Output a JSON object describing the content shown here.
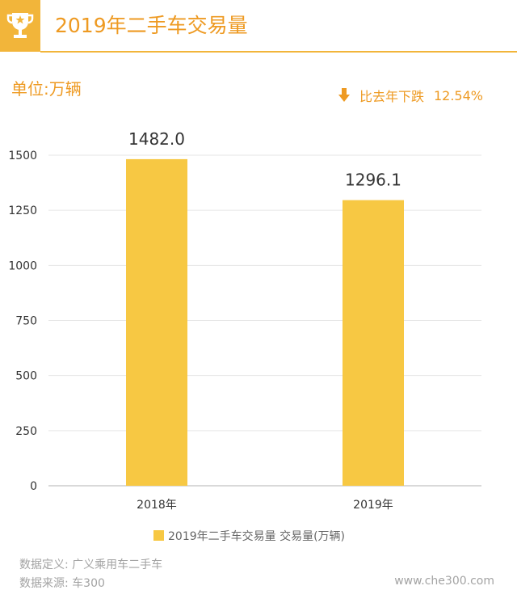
{
  "header": {
    "title": "2019年二手车交易量",
    "icon": "trophy-icon"
  },
  "unit_label": "单位:万辆",
  "change": {
    "icon": "down-arrow-icon",
    "label": "比去年下跌",
    "value": "12.54%"
  },
  "chart_data": {
    "type": "bar",
    "categories": [
      "2018年",
      "2019年"
    ],
    "series": [
      {
        "name": "2019年二手车交易量  交易量(万辆)",
        "values": [
          1482.0,
          1296.1
        ]
      }
    ],
    "data_labels": [
      "1482.0",
      "1296.1"
    ],
    "yticks": [
      0,
      250,
      500,
      750,
      1000,
      1250,
      1500
    ],
    "ylim": [
      0,
      1500
    ],
    "grid": true,
    "legend_position": "bottom",
    "colors": {
      "bar": "#f7c843",
      "grid": "#e6e6e6",
      "axis": "#b3b3b3",
      "text": "#333333"
    }
  },
  "footer": {
    "definition": "数据定义: 广义乘用车二手车",
    "source": "数据来源: 车300",
    "website": "www.che300.com"
  }
}
